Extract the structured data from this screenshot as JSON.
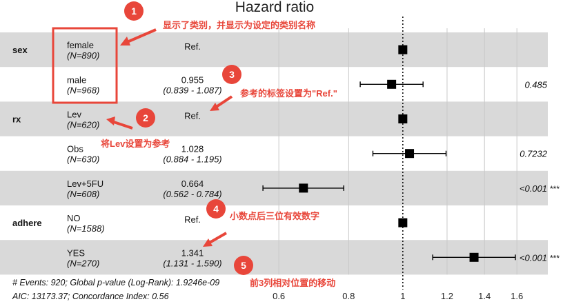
{
  "colors": {
    "band": "#d9d9d9",
    "grid": "#c8c8c8",
    "marker": "#000000",
    "annotation": "#e8463a"
  },
  "chart_data": {
    "type": "forest",
    "title": "Hazard ratio",
    "x_scale": "log",
    "xlim": [
      0.5,
      1.65
    ],
    "x_ticks": [
      0.6,
      0.8,
      1,
      1.2,
      1.4,
      1.6
    ],
    "x_tick_labels": [
      "0.6",
      "0.8",
      "1",
      "1.2",
      "1.4",
      "1.6"
    ],
    "reference_line": 1,
    "rows": [
      {
        "var": "sex",
        "level": "female",
        "n": "(N=890)",
        "estimate": "Ref.",
        "ci": "",
        "p": "",
        "sig": "",
        "hr": 1,
        "low": null,
        "high": null,
        "band": true
      },
      {
        "var": "",
        "level": "male",
        "n": "(N=968)",
        "estimate": "0.955",
        "ci": "(0.839 - 1.087)",
        "p": "0.485",
        "sig": "",
        "hr": 0.955,
        "low": 0.839,
        "high": 1.087,
        "band": false
      },
      {
        "var": "rx",
        "level": "Lev",
        "n": "(N=620)",
        "estimate": "Ref.",
        "ci": "",
        "p": "",
        "sig": "",
        "hr": 1,
        "low": null,
        "high": null,
        "band": true
      },
      {
        "var": "",
        "level": "Obs",
        "n": "(N=630)",
        "estimate": "1.028",
        "ci": "(0.884 - 1.195)",
        "p": "0.7232",
        "sig": "",
        "hr": 1.028,
        "low": 0.884,
        "high": 1.195,
        "band": false
      },
      {
        "var": "",
        "level": "Lev+5FU",
        "n": "(N=608)",
        "estimate": "0.664",
        "ci": "(0.562 - 0.784)",
        "p": "<0.001",
        "sig": "***",
        "hr": 0.664,
        "low": 0.562,
        "high": 0.784,
        "band": true
      },
      {
        "var": "adhere",
        "level": "NO",
        "n": "(N=1588)",
        "estimate": "Ref.",
        "ci": "",
        "p": "",
        "sig": "",
        "hr": 1,
        "low": null,
        "high": null,
        "band": false
      },
      {
        "var": "",
        "level": "YES",
        "n": "(N=270)",
        "estimate": "1.341",
        "ci": "(1.131 - 1.590)",
        "p": "<0.001",
        "sig": "***",
        "hr": 1.341,
        "low": 1.131,
        "high": 1.59,
        "band": true
      }
    ],
    "footnote_line1": "# Events: 920; Global p-value (Log-Rank): 1.9246e-09",
    "footnote_line2": "AIC: 13173.37; Concordance Index: 0.56"
  },
  "annotations": [
    {
      "badge": "1",
      "text": "显示了类别，并显示为设定的类别名称"
    },
    {
      "badge": "2",
      "text": "将Lev设置为参考"
    },
    {
      "badge": "3",
      "text": "参考的标签设置为\"Ref.\""
    },
    {
      "badge": "4",
      "text": "小数点后三位有效数字"
    },
    {
      "badge": "5",
      "text": "前3列相对位置的移动"
    }
  ]
}
